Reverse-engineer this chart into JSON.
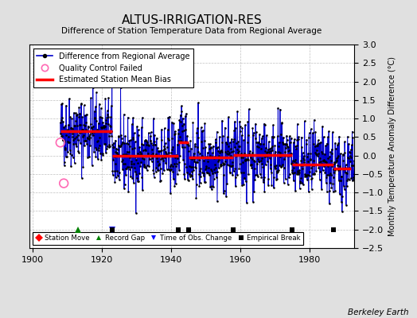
{
  "title": "ALTUS-IRRIGATION-RES",
  "subtitle": "Difference of Station Temperature Data from Regional Average",
  "ylabel": "Monthly Temperature Anomaly Difference (°C)",
  "xlabel_ticks": [
    1900,
    1920,
    1940,
    1960,
    1980
  ],
  "ylim": [
    -2.5,
    3.0
  ],
  "xlim": [
    1899,
    1993
  ],
  "yticks": [
    -2.5,
    -2,
    -1.5,
    -1,
    -0.5,
    0,
    0.5,
    1,
    1.5,
    2,
    2.5,
    3
  ],
  "background_color": "#e0e0e0",
  "plot_bg_color": "#ffffff",
  "grid_color": "#b0b0b0",
  "line_color": "#0000cc",
  "marker_color": "#000000",
  "bias_color": "#ff0000",
  "qc_color": "#ff69b4",
  "seed": 42,
  "data_start": 1908,
  "data_end": 1992,
  "bias_segments": [
    {
      "start": 1908,
      "end": 1923,
      "value": 0.65
    },
    {
      "start": 1923,
      "end": 1942,
      "value": 0.0
    },
    {
      "start": 1942,
      "end": 1945,
      "value": 0.35
    },
    {
      "start": 1945,
      "end": 1958,
      "value": -0.05
    },
    {
      "start": 1958,
      "end": 1975,
      "value": 0.02
    },
    {
      "start": 1975,
      "end": 1987,
      "value": -0.25
    },
    {
      "start": 1987,
      "end": 1993,
      "value": -0.35
    }
  ],
  "empirical_breaks": [
    1923,
    1942,
    1945,
    1958,
    1975,
    1987
  ],
  "record_gap": [
    1913
  ],
  "time_obs_change": [
    1923
  ],
  "station_move": [],
  "qc_failed_years": [
    1908,
    1909
  ],
  "qc_failed_values": [
    0.35,
    -0.75
  ],
  "annotation": "Berkeley Earth"
}
